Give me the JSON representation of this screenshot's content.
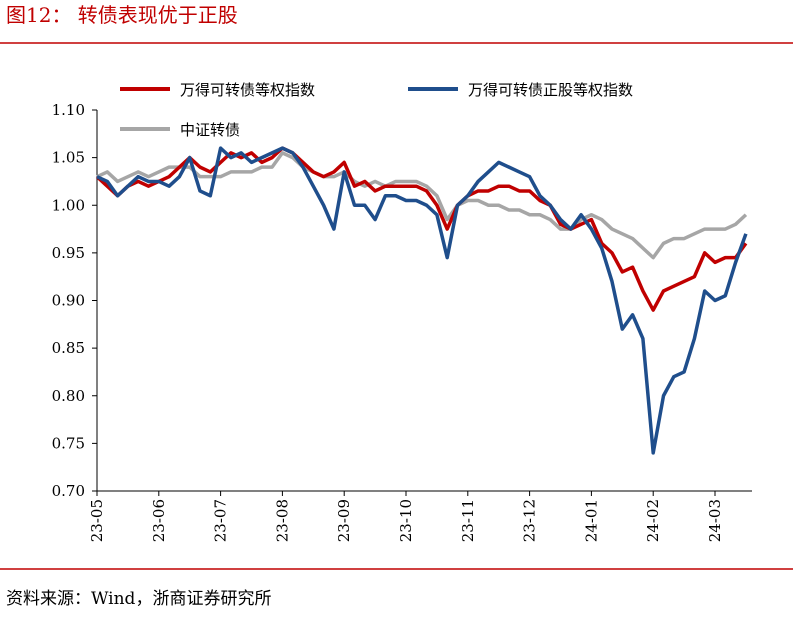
{
  "chart_data": {
    "type": "line",
    "title": "图12：  转债表现优于正股",
    "source": "资料来源：Wind，浙商证券研究所",
    "categories": [
      "23-05",
      null,
      null,
      null,
      null,
      null,
      "23-06",
      null,
      null,
      null,
      null,
      null,
      "23-07",
      null,
      null,
      null,
      null,
      null,
      "23-08",
      null,
      null,
      null,
      null,
      null,
      "23-09",
      null,
      null,
      null,
      null,
      null,
      "23-10",
      null,
      null,
      null,
      null,
      null,
      "23-11",
      null,
      null,
      null,
      null,
      null,
      "23-12",
      null,
      null,
      null,
      null,
      null,
      "24-01",
      null,
      null,
      null,
      null,
      null,
      "24-02",
      null,
      null,
      null,
      null,
      null,
      "24-03",
      null,
      null,
      null
    ],
    "series": [
      {
        "name": "万得可转债等权指数",
        "color": "#c00000",
        "values": [
          1.03,
          1.02,
          1.01,
          1.02,
          1.025,
          1.02,
          1.025,
          1.03,
          1.04,
          1.05,
          1.04,
          1.035,
          1.045,
          1.055,
          1.05,
          1.055,
          1.045,
          1.05,
          1.06,
          1.055,
          1.045,
          1.035,
          1.03,
          1.035,
          1.045,
          1.02,
          1.025,
          1.015,
          1.02,
          1.02,
          1.02,
          1.02,
          1.015,
          1.0,
          0.975,
          1.0,
          1.01,
          1.015,
          1.015,
          1.02,
          1.02,
          1.015,
          1.015,
          1.005,
          1.0,
          0.98,
          0.975,
          0.98,
          0.985,
          0.96,
          0.95,
          0.93,
          0.935,
          0.91,
          0.89,
          0.91,
          0.915,
          0.92,
          0.925,
          0.95,
          0.94,
          0.945,
          0.945,
          0.96
        ]
      },
      {
        "name": "万得可转债正股等权指数",
        "color": "#1f4e8c",
        "values": [
          1.03,
          1.025,
          1.01,
          1.02,
          1.03,
          1.025,
          1.025,
          1.02,
          1.03,
          1.05,
          1.015,
          1.01,
          1.06,
          1.05,
          1.055,
          1.045,
          1.05,
          1.055,
          1.06,
          1.055,
          1.04,
          1.02,
          1.0,
          0.975,
          1.035,
          1.0,
          1.0,
          0.985,
          1.01,
          1.01,
          1.005,
          1.005,
          1.0,
          0.99,
          0.945,
          1.0,
          1.01,
          1.025,
          1.035,
          1.045,
          1.04,
          1.035,
          1.03,
          1.01,
          1.0,
          0.985,
          0.975,
          0.99,
          0.975,
          0.955,
          0.92,
          0.87,
          0.885,
          0.86,
          0.74,
          0.8,
          0.82,
          0.825,
          0.86,
          0.91,
          0.9,
          0.905,
          0.94,
          0.97
        ]
      },
      {
        "name": "中证转债",
        "color": "#a6a6a6",
        "values": [
          1.03,
          1.035,
          1.025,
          1.03,
          1.035,
          1.03,
          1.035,
          1.04,
          1.04,
          1.04,
          1.03,
          1.03,
          1.03,
          1.035,
          1.035,
          1.035,
          1.04,
          1.04,
          1.055,
          1.05,
          1.04,
          1.035,
          1.03,
          1.03,
          1.035,
          1.025,
          1.02,
          1.025,
          1.02,
          1.025,
          1.025,
          1.025,
          1.02,
          1.01,
          0.985,
          1.0,
          1.005,
          1.005,
          1.0,
          1.0,
          0.995,
          0.995,
          0.99,
          0.99,
          0.985,
          0.975,
          0.975,
          0.985,
          0.99,
          0.985,
          0.975,
          0.97,
          0.965,
          0.955,
          0.945,
          0.96,
          0.965,
          0.965,
          0.97,
          0.975,
          0.975,
          0.975,
          0.98,
          0.99
        ]
      }
    ],
    "ylim": [
      0.7,
      1.1
    ],
    "yticks": [
      {
        "value": 0.7,
        "label": "0.70"
      },
      0.75,
      {
        "value": 0.8,
        "label": "0.80"
      },
      0.85,
      {
        "value": 0.9,
        "label": "0.90"
      },
      0.95,
      {
        "value": 1.0,
        "label": "1.00"
      },
      1.05,
      {
        "value": 1.1,
        "label": "1.10"
      }
    ],
    "legend": "top-left",
    "grid": false
  }
}
